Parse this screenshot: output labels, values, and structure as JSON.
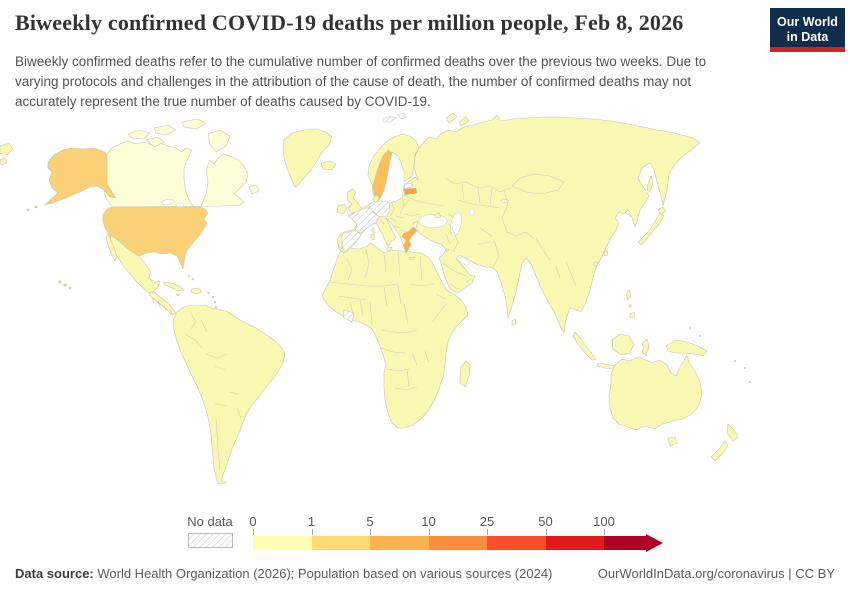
{
  "header": {
    "title": "Biweekly confirmed COVID-19 deaths per million people, Feb 8, 2026",
    "logo": {
      "line1": "Our World",
      "line2": "in Data",
      "bg_color": "#102d4e",
      "accent_color": "#ce261e"
    }
  },
  "subtitle": "Biweekly confirmed deaths refer to the cumulative number of confirmed deaths over the previous two weeks. Due to varying protocols and challenges in the attribution of the cause of death, the number of confirmed deaths may not accurately represent the true number of deaths caused by COVID-19.",
  "legend": {
    "no_data_label": "No data",
    "tick_labels": [
      "0",
      "1",
      "5",
      "10",
      "25",
      "50",
      "100"
    ],
    "bin_colors": [
      "#FFFFB2",
      "#FED976",
      "#FEB24C",
      "#FD8D3C",
      "#FC4E2A",
      "#E31A1C",
      "#B10026"
    ]
  },
  "footer": {
    "source_label": "Data source:",
    "source_text": " World Health Organization (2026); Population based on various sources (2024)",
    "rights_text": "OurWorldInData.org/coronavirus | CC BY"
  },
  "map": {
    "fills": {
      "default": "#F9F8B2",
      "canada": "#FDFDD6",
      "usa": "#FBD177",
      "sweden": "#FBC05A",
      "greece": "#FAB24E",
      "latvia": "#F9A23E",
      "no-data": "url(#hatch)",
      "sea": "#FFFFFF"
    }
  },
  "chart_data": {
    "type": "choropleth",
    "title": "Biweekly confirmed COVID-19 deaths per million people",
    "date": "Feb 8, 2026",
    "unit": "deaths per million people (previous two weeks)",
    "legend_position": "bottom",
    "bins": [
      {
        "range": "0-1",
        "color": "#FFFFB2"
      },
      {
        "range": "1-5",
        "color": "#FED976"
      },
      {
        "range": "5-10",
        "color": "#FEB24C"
      },
      {
        "range": "10-25",
        "color": "#FD8D3C"
      },
      {
        "range": "25-50",
        "color": "#FC4E2A"
      },
      {
        "range": "50-100",
        "color": "#E31A1C"
      },
      {
        "range": "100+",
        "color": "#B10026"
      }
    ],
    "values_by_country": {
      "United States": "1-5",
      "Sweden": "1-5",
      "Greece": "1-5",
      "Latvia": "5-10",
      "all other reporting countries": "0-1"
    },
    "no_data_countries": [
      "France",
      "Spain",
      "Germany",
      "Estonia",
      "Côte d'Ivoire",
      "Svalbard"
    ]
  }
}
